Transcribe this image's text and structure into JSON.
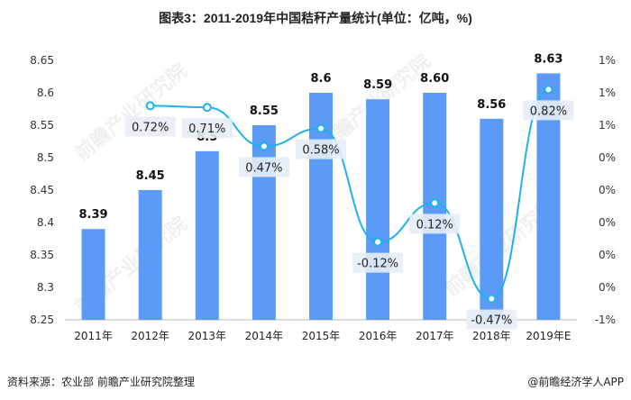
{
  "title": "图表3：2011-2019年中国秸秆产量统计(单位：亿吨，%)",
  "source": "资料来源：农业部 前瞻产业研究院整理",
  "brand": "@前瞻经济学人APP",
  "watermark": "前瞻产业研究院",
  "colors": {
    "bar": "#5b9bf5",
    "line": "#1eb1ec",
    "label_bg": "#e6edf7"
  },
  "chart_data": {
    "type": "bar+line",
    "categories": [
      "2011年",
      "2012年",
      "2013年",
      "2014年",
      "2015年",
      "2016年",
      "2017年",
      "2018年",
      "2019年E"
    ],
    "series": [
      {
        "type": "bar",
        "axis": "left",
        "values": [
          8.39,
          8.45,
          8.51,
          8.55,
          8.6,
          8.59,
          8.6,
          8.56,
          8.63
        ],
        "labels": [
          "8.39",
          "8.45",
          "8.5",
          "8.55",
          "8.6",
          "8.59",
          "8.60",
          "8.56",
          "8.63"
        ]
      },
      {
        "type": "line",
        "axis": "right",
        "values": [
          null,
          0.72,
          0.71,
          0.47,
          0.58,
          -0.12,
          0.12,
          -0.47,
          0.82
        ],
        "labels": [
          "",
          "0.72%",
          "0.71%",
          "0.47%",
          "0.58%",
          "-0.12%",
          "0.12%",
          "-0.47%",
          "0.82%"
        ]
      }
    ],
    "left_axis": {
      "ylim": [
        8.25,
        8.65
      ],
      "ticks": [
        "8.25",
        "8.3",
        "8.35",
        "8.4",
        "8.45",
        "8.5",
        "8.55",
        "8.6",
        "8.65"
      ]
    },
    "right_axis": {
      "ylim": [
        -0.6,
        1.0
      ],
      "ticks": [
        "-1%",
        "0%",
        "0%",
        "0%",
        "0%",
        "0%",
        "1%",
        "1%",
        "1%"
      ]
    },
    "grid": false,
    "legend": "none"
  }
}
